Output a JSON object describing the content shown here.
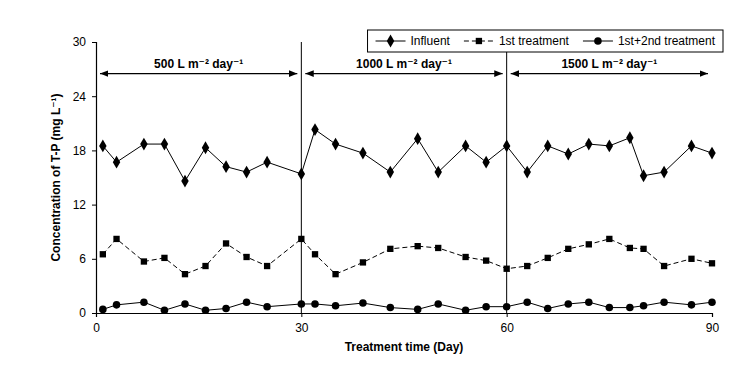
{
  "chart_data": {
    "type": "line",
    "x_label": "Treatment time (Day)",
    "y_label": "Concentration of T-P (mg L⁻¹)",
    "x": [
      1,
      3,
      7,
      10,
      13,
      16,
      19,
      22,
      25,
      30,
      32,
      35,
      39,
      43,
      47,
      50,
      54,
      57,
      60,
      63,
      66,
      69,
      72,
      75,
      78,
      80,
      83,
      87,
      90
    ],
    "series": [
      {
        "name": "Influent",
        "color": "#000000",
        "marker": "diamond",
        "line_style": "solid",
        "values": [
          18.5,
          16.7,
          18.7,
          18.7,
          14.6,
          18.3,
          16.2,
          15.6,
          16.7,
          15.4,
          20.3,
          18.7,
          17.7,
          15.6,
          19.3,
          15.6,
          18.5,
          16.7,
          18.5,
          15.6,
          18.5,
          17.6,
          18.7,
          18.5,
          19.4,
          15.2,
          15.6,
          18.5,
          17.7
        ]
      },
      {
        "name": "1st treatment",
        "color": "#000000",
        "marker": "square",
        "line_style": "dashed",
        "values": [
          6.5,
          8.2,
          5.7,
          6.1,
          4.3,
          5.2,
          7.7,
          6.2,
          5.2,
          8.2,
          6.5,
          4.3,
          5.6,
          7.1,
          7.4,
          7.2,
          6.2,
          5.8,
          4.9,
          5.2,
          6.1,
          7.1,
          7.6,
          8.2,
          7.2,
          7.1,
          5.2,
          6.0,
          5.5
        ]
      },
      {
        "name": "1st+2nd treatment",
        "color": "#000000",
        "marker": "circle",
        "line_style": "solid",
        "values": [
          0.4,
          0.9,
          1.2,
          0.3,
          1.0,
          0.3,
          0.5,
          1.2,
          0.7,
          1.0,
          1.0,
          0.8,
          1.1,
          0.6,
          0.4,
          1.0,
          0.3,
          0.7,
          0.7,
          1.2,
          0.5,
          1.0,
          1.2,
          0.6,
          0.6,
          0.8,
          1.2,
          0.9,
          1.2
        ]
      }
    ],
    "xlim": [
      0,
      90
    ],
    "xticks": [
      0,
      30,
      60,
      90
    ],
    "ylim": [
      0,
      30
    ],
    "yticks": [
      0,
      6,
      12,
      18,
      24,
      30
    ],
    "legend": "top",
    "annotations": [
      {
        "text": "500 L m⁻² day⁻¹",
        "x": [
          0,
          30
        ],
        "y": 26.5
      },
      {
        "text": "1000 L m⁻² day⁻¹",
        "x": [
          30,
          60
        ],
        "y": 26.5
      },
      {
        "text": "1500 L m⁻² day⁻¹",
        "x": [
          60,
          90
        ],
        "y": 26.5
      }
    ]
  }
}
